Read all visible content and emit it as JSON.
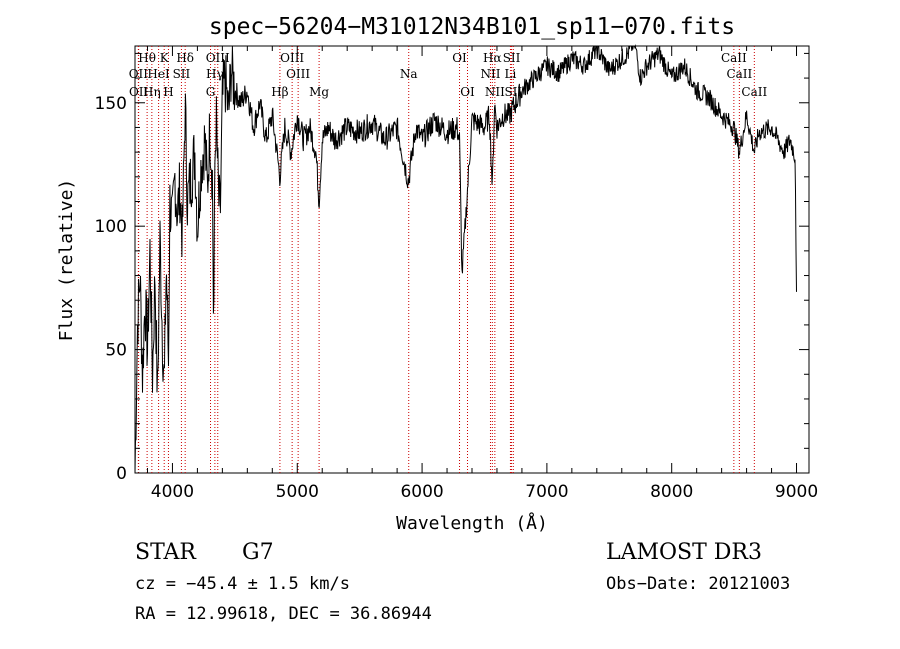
{
  "chart_data": {
    "type": "line",
    "title": "spec−56204−M31012N34B101_sp11−070.fits",
    "xlabel": "Wavelength (Å)",
    "ylabel": "Flux (relative)",
    "xlim": [
      3700,
      9100
    ],
    "ylim": [
      0,
      173
    ],
    "xticks": [
      4000,
      5000,
      6000,
      7000,
      8000,
      9000
    ],
    "yticks": [
      0,
      50,
      100,
      150
    ],
    "series": [
      {
        "name": "spectrum",
        "x": [
          3700,
          3720,
          3740,
          3760,
          3780,
          3800,
          3820,
          3840,
          3860,
          3880,
          3900,
          3920,
          3935,
          3950,
          3968,
          3980,
          4000,
          4020,
          4040,
          4060,
          4080,
          4102,
          4120,
          4150,
          4180,
          4200,
          4230,
          4260,
          4280,
          4300,
          4320,
          4330,
          4340,
          4350,
          4370,
          4383,
          4400,
          4420,
          4450,
          4470,
          4500,
          4550,
          4600,
          4650,
          4700,
          4750,
          4800,
          4861,
          4900,
          4950,
          5000,
          5050,
          5100,
          5150,
          5175,
          5200,
          5250,
          5300,
          5400,
          5500,
          5600,
          5700,
          5800,
          5890,
          5950,
          6000,
          6100,
          6200,
          6280,
          6300,
          6320,
          6400,
          6500,
          6540,
          6563,
          6580,
          6600,
          6650,
          6700,
          6750,
          6800,
          6900,
          7000,
          7100,
          7200,
          7300,
          7400,
          7500,
          7600,
          7650,
          7700,
          7750,
          7800,
          7900,
          8000,
          8100,
          8200,
          8300,
          8400,
          8498,
          8542,
          8600,
          8662,
          8700,
          8800,
          8900,
          8950,
          8990,
          9000
        ],
        "values": [
          0,
          60,
          80,
          40,
          70,
          50,
          90,
          40,
          80,
          30,
          95,
          55,
          35,
          85,
          45,
          110,
          100,
          120,
          105,
          115,
          95,
          150,
          110,
          120,
          130,
          100,
          125,
          135,
          115,
          140,
          120,
          55,
          125,
          145,
          110,
          105,
          150,
          160,
          145,
          165,
          155,
          150,
          155,
          140,
          150,
          135,
          145,
          120,
          140,
          130,
          145,
          135,
          140,
          130,
          110,
          135,
          140,
          135,
          140,
          138,
          142,
          135,
          140,
          118,
          140,
          135,
          143,
          138,
          140,
          135,
          80,
          143,
          140,
          145,
          115,
          150,
          140,
          145,
          145,
          150,
          155,
          160,
          165,
          162,
          168,
          165,
          172,
          163,
          168,
          170,
          175,
          160,
          165,
          170,
          160,
          165,
          155,
          152,
          145,
          140,
          130,
          145,
          130,
          138,
          140,
          130,
          135,
          128,
          70
        ]
      }
    ],
    "line_labels": {
      "row1": [
        {
          "text": "Hθ",
          "x": 3797
        },
        {
          "text": "K",
          "x": 3934
        },
        {
          "text": "Hδ",
          "x": 4102
        },
        {
          "text": "OIII",
          "x": 4363
        },
        {
          "text": "OIII",
          "x": 4959
        },
        {
          "text": "OI",
          "x": 6300
        },
        {
          "text": "Hα",
          "x": 6563
        },
        {
          "text": "SII",
          "x": 6717
        },
        {
          "text": "CaII",
          "x": 8498
        }
      ],
      "row2": [
        {
          "text": "OII",
          "x": 3727
        },
        {
          "text": "HeI",
          "x": 3889
        },
        {
          "text": "SII",
          "x": 4072
        },
        {
          "text": "Hγ",
          "x": 4340
        },
        {
          "text": "OIII",
          "x": 5007
        },
        {
          "text": "Na",
          "x": 5893
        },
        {
          "text": "NII",
          "x": 6548
        },
        {
          "text": "Li",
          "x": 6708
        },
        {
          "text": "CaII",
          "x": 8542
        }
      ],
      "row3": [
        {
          "text": "OII",
          "x": 3729
        },
        {
          "text": "Hη",
          "x": 3835
        },
        {
          "text": "H",
          "x": 3968
        },
        {
          "text": "G",
          "x": 4305
        },
        {
          "text": "Hβ",
          "x": 4861
        },
        {
          "text": "Mg",
          "x": 5175
        },
        {
          "text": "OI",
          "x": 6364
        },
        {
          "text": "NII",
          "x": 6583
        },
        {
          "text": "SII",
          "x": 6731
        },
        {
          "text": "CaII",
          "x": 8662
        }
      ]
    },
    "marker_lines": [
      3727,
      3729,
      3797,
      3835,
      3889,
      3934,
      3968,
      4072,
      4102,
      4305,
      4340,
      4363,
      4861,
      4959,
      5007,
      5175,
      5893,
      6300,
      6364,
      6548,
      6563,
      6583,
      6708,
      6717,
      6731,
      8498,
      8542,
      8662
    ]
  },
  "info": {
    "class": "STAR",
    "subclass": "G7",
    "survey": "LAMOST DR3",
    "cz": "cz = −45.4 ± 1.5 km/s",
    "obs_date": "Obs−Date: 20121003",
    "coords": "RA =  12.99618, DEC =  36.86944"
  }
}
